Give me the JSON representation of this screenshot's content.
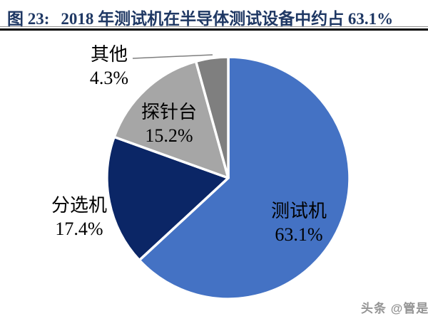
{
  "figure_header": {
    "title_prefix": "图 23:",
    "title_text": "2018 年测试机在半导体测试设备中约占 63.1%"
  },
  "chart_data": {
    "type": "pie",
    "title": "2018 年测试机在半导体测试设备中约占 63.1%",
    "direction": "clockwise",
    "start_angle_deg": 0,
    "total": 100,
    "slices": [
      {
        "label": "测试机",
        "value": 63.1,
        "value_label": "63.1%",
        "color": "#4472C4",
        "label_placement": "inside"
      },
      {
        "label": "分选机",
        "value": 17.4,
        "value_label": "17.4%",
        "color": "#0B2666",
        "label_placement": "outside-left"
      },
      {
        "label": "探针台",
        "value": 15.2,
        "value_label": "15.2%",
        "color": "#A6A6A6",
        "label_placement": "inside"
      },
      {
        "label": "其他",
        "value": 4.3,
        "value_label": "4.3%",
        "color": "#7F7F7F",
        "label_placement": "outside-callout"
      }
    ],
    "slice_border_color": "#FFFFFF",
    "legend": "none",
    "label_font_color": "#000000"
  },
  "watermark": {
    "text": "头条 @管是"
  },
  "colors": {
    "title": "#1F3864",
    "rule_light": "#8C8C8C",
    "rule_dark": "#000000",
    "callout_line": "#7F7F7F",
    "background": "#FFFFFF"
  }
}
